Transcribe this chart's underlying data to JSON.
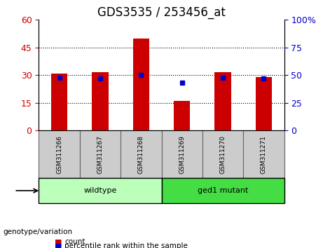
{
  "title": "GDS3535 / 253456_at",
  "samples": [
    "GSM311266",
    "GSM311267",
    "GSM311268",
    "GSM311269",
    "GSM311270",
    "GSM311271"
  ],
  "counts": [
    31,
    31.5,
    50,
    16,
    31.5,
    29
  ],
  "percentile_ranks": [
    48,
    47,
    50,
    43,
    48,
    47
  ],
  "ylim_left": [
    0,
    60
  ],
  "ylim_right": [
    0,
    100
  ],
  "yticks_left": [
    0,
    15,
    30,
    45,
    60
  ],
  "ytick_labels_left": [
    "0",
    "15",
    "30",
    "45",
    "60"
  ],
  "yticks_right": [
    0,
    25,
    50,
    75,
    100
  ],
  "ytick_labels_right": [
    "0",
    "25",
    "50",
    "75",
    "100%"
  ],
  "bar_color": "#cc0000",
  "dot_color": "#0000cc",
  "genotype_groups": [
    {
      "label": "wildtype",
      "start": 0,
      "end": 3,
      "color": "#bbffbb"
    },
    {
      "label": "ged1 mutant",
      "start": 3,
      "end": 6,
      "color": "#44dd44"
    }
  ],
  "genotype_label": "genotype/variation",
  "legend_items": [
    {
      "label": "count",
      "color": "#cc0000"
    },
    {
      "label": "percentile rank within the sample",
      "color": "#0000cc"
    }
  ],
  "grid_color": "black",
  "grid_linestyle": "dotted",
  "grid_yticks": [
    15,
    30,
    45
  ],
  "bar_width": 0.4,
  "xlabel_fontsize": 8,
  "title_fontsize": 12,
  "tick_fontsize": 9,
  "sample_bg_color": "#cccccc",
  "sample_border_color": "#666666"
}
